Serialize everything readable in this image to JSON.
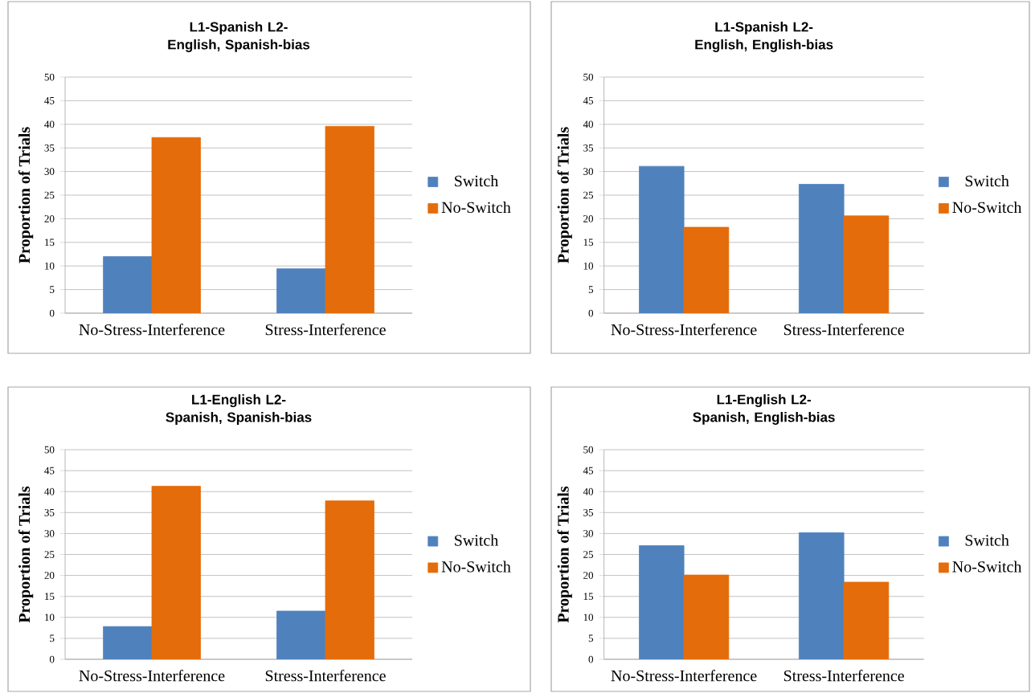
{
  "chart_data": [
    {
      "type": "bar",
      "title": "L1-Spanish L2-English, Spanish-bias",
      "ylabel": "Proportion of Trials",
      "categories": [
        "No-Stress-Interference",
        "Stress-Interference"
      ],
      "series": [
        {
          "name": "Switch",
          "color": "#4f81bd",
          "values": [
            12,
            9.4
          ]
        },
        {
          "name": "No-Switch",
          "color": "#e46c0a",
          "values": [
            37.2,
            39.6
          ]
        }
      ],
      "ylim": [
        0,
        50
      ],
      "yticks": [
        0,
        5,
        10,
        15,
        20,
        25,
        30,
        35,
        40,
        45,
        50
      ],
      "grid": "y",
      "legend": "right"
    },
    {
      "type": "bar",
      "title": "L1-Spanish L2-English, English-bias",
      "ylabel": "Proportion of Trials",
      "categories": [
        "No-Stress-Interference",
        "Stress-Interference"
      ],
      "series": [
        {
          "name": "Switch",
          "color": "#4f81bd",
          "values": [
            31.1,
            27.3
          ]
        },
        {
          "name": "No-Switch",
          "color": "#e46c0a",
          "values": [
            18.2,
            20.6
          ]
        }
      ],
      "ylim": [
        0,
        50
      ],
      "yticks": [
        0,
        5,
        10,
        15,
        20,
        25,
        30,
        35,
        40,
        45,
        50
      ],
      "grid": "y",
      "legend": "right"
    },
    {
      "type": "bar",
      "title": "L1-English L2-Spanish, Spanish-bias",
      "ylabel": "Proportion of Trials",
      "categories": [
        "No-Stress-Interference",
        "Stress-Interference"
      ],
      "series": [
        {
          "name": "Switch",
          "color": "#4f81bd",
          "values": [
            7.8,
            11.5
          ]
        },
        {
          "name": "No-Switch",
          "color": "#e46c0a",
          "values": [
            41.3,
            37.8
          ]
        }
      ],
      "ylim": [
        0,
        50
      ],
      "yticks": [
        0,
        5,
        10,
        15,
        20,
        25,
        30,
        35,
        40,
        45,
        50
      ],
      "grid": "y",
      "legend": "right"
    },
    {
      "type": "bar",
      "title": "L1-English L2-Spanish, English-bias",
      "ylabel": "Proportion of Trials",
      "categories": [
        "No-Stress-Interference",
        "Stress-Interference"
      ],
      "series": [
        {
          "name": "Switch",
          "color": "#4f81bd",
          "values": [
            27.1,
            30.2
          ]
        },
        {
          "name": "No-Switch",
          "color": "#e46c0a",
          "values": [
            20.1,
            18.4
          ]
        }
      ],
      "ylim": [
        0,
        50
      ],
      "yticks": [
        0,
        5,
        10,
        15,
        20,
        25,
        30,
        35,
        40,
        45,
        50
      ],
      "grid": "y",
      "legend": "right"
    }
  ]
}
